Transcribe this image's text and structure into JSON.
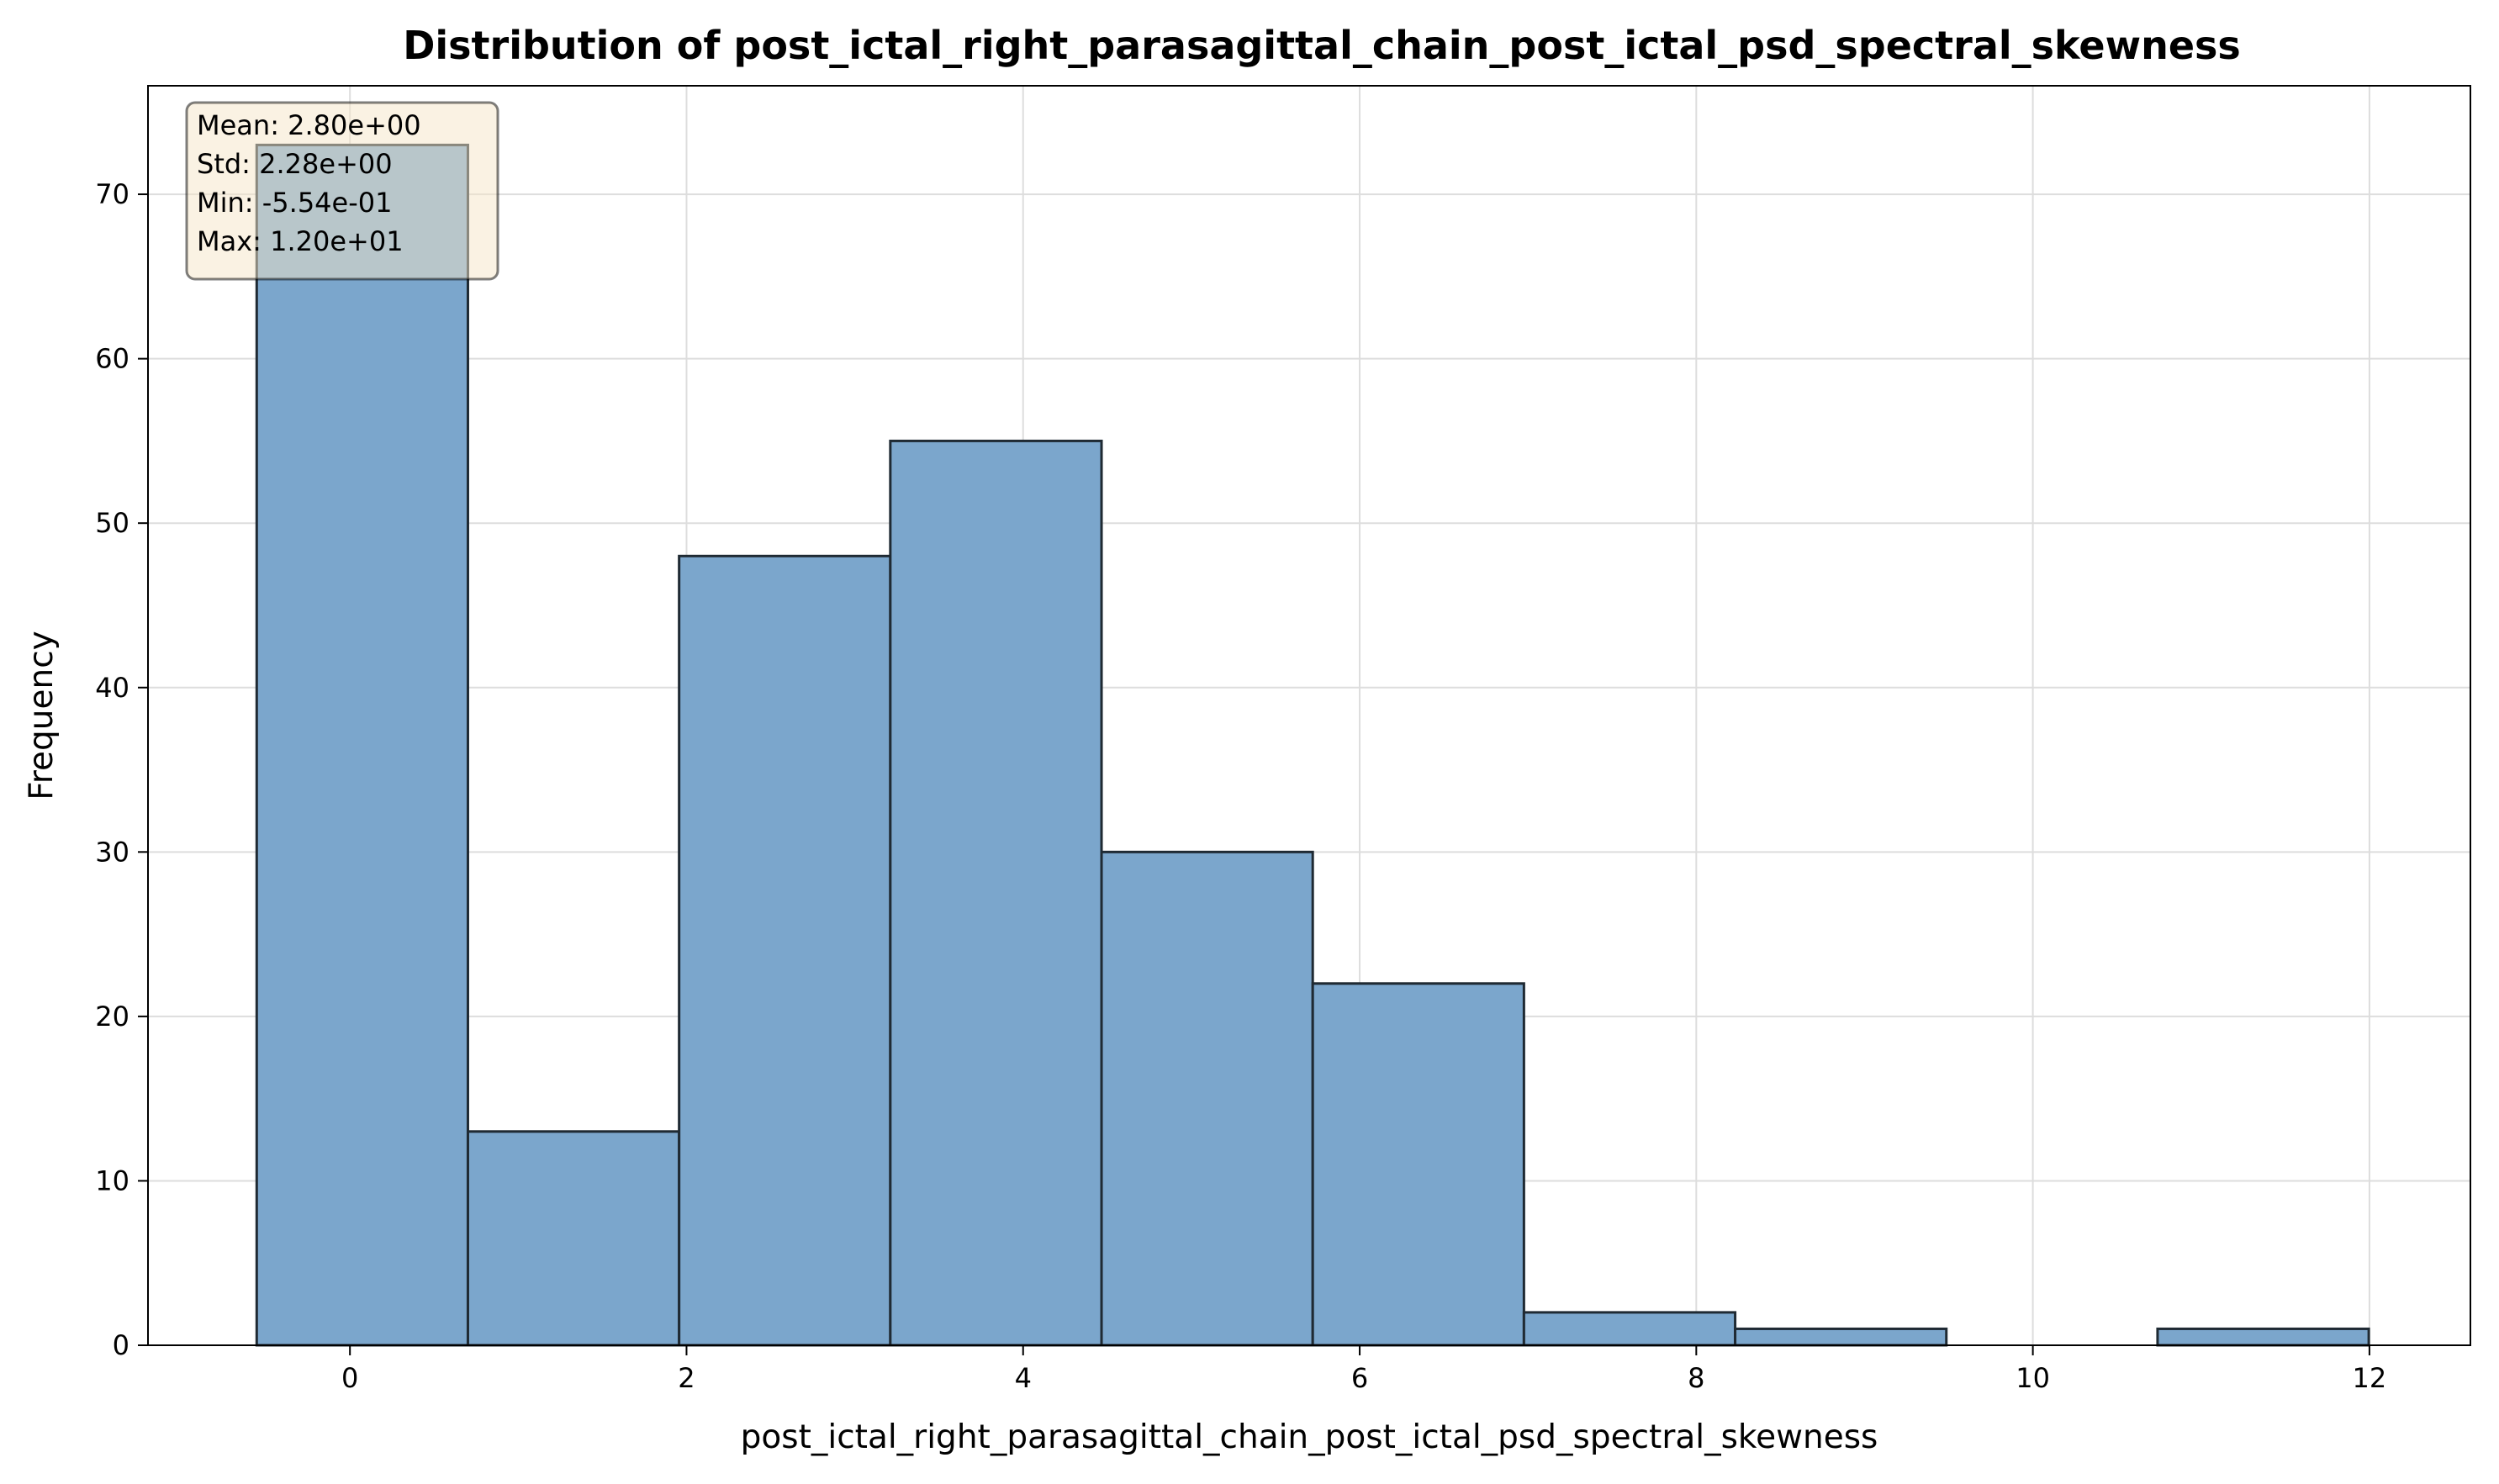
{
  "chart_data": {
    "type": "bar",
    "title": "Distribution of post_ictal_right_parasagittal_chain_post_ictal_psd_spectral_skewness",
    "xlabel": "post_ictal_right_parasagittal_chain_post_ictal_psd_spectral_skewness",
    "ylabel": "Frequency",
    "xlim": [
      -1.2,
      12.6
    ],
    "ylim": [
      0,
      76.6
    ],
    "x_ticks": [
      "0",
      "2",
      "4",
      "6",
      "8",
      "10",
      "12"
    ],
    "x_tick_values": [
      0,
      2,
      4,
      6,
      8,
      10,
      12
    ],
    "y_ticks": [
      "0",
      "10",
      "20",
      "30",
      "40",
      "50",
      "60",
      "70"
    ],
    "y_tick_values": [
      0,
      10,
      20,
      30,
      40,
      50,
      60,
      70
    ],
    "bin_edges": [
      -0.554,
      0.701,
      1.956,
      3.211,
      4.466,
      5.721,
      6.976,
      8.231,
      9.486,
      10.741,
      11.996
    ],
    "values": [
      73,
      13,
      48,
      55,
      30,
      22,
      2,
      1,
      0,
      1
    ],
    "grid": true,
    "bar_color": "#7ba6cc",
    "bar_edge_color": "#1f2a33",
    "stats_box": {
      "lines": [
        "Mean: 2.80e+00",
        "Std: 2.28e+00",
        "Min: -5.54e-01",
        "Max: 1.20e+01"
      ],
      "placement": "top-left",
      "background": "#f6e6c8"
    }
  }
}
